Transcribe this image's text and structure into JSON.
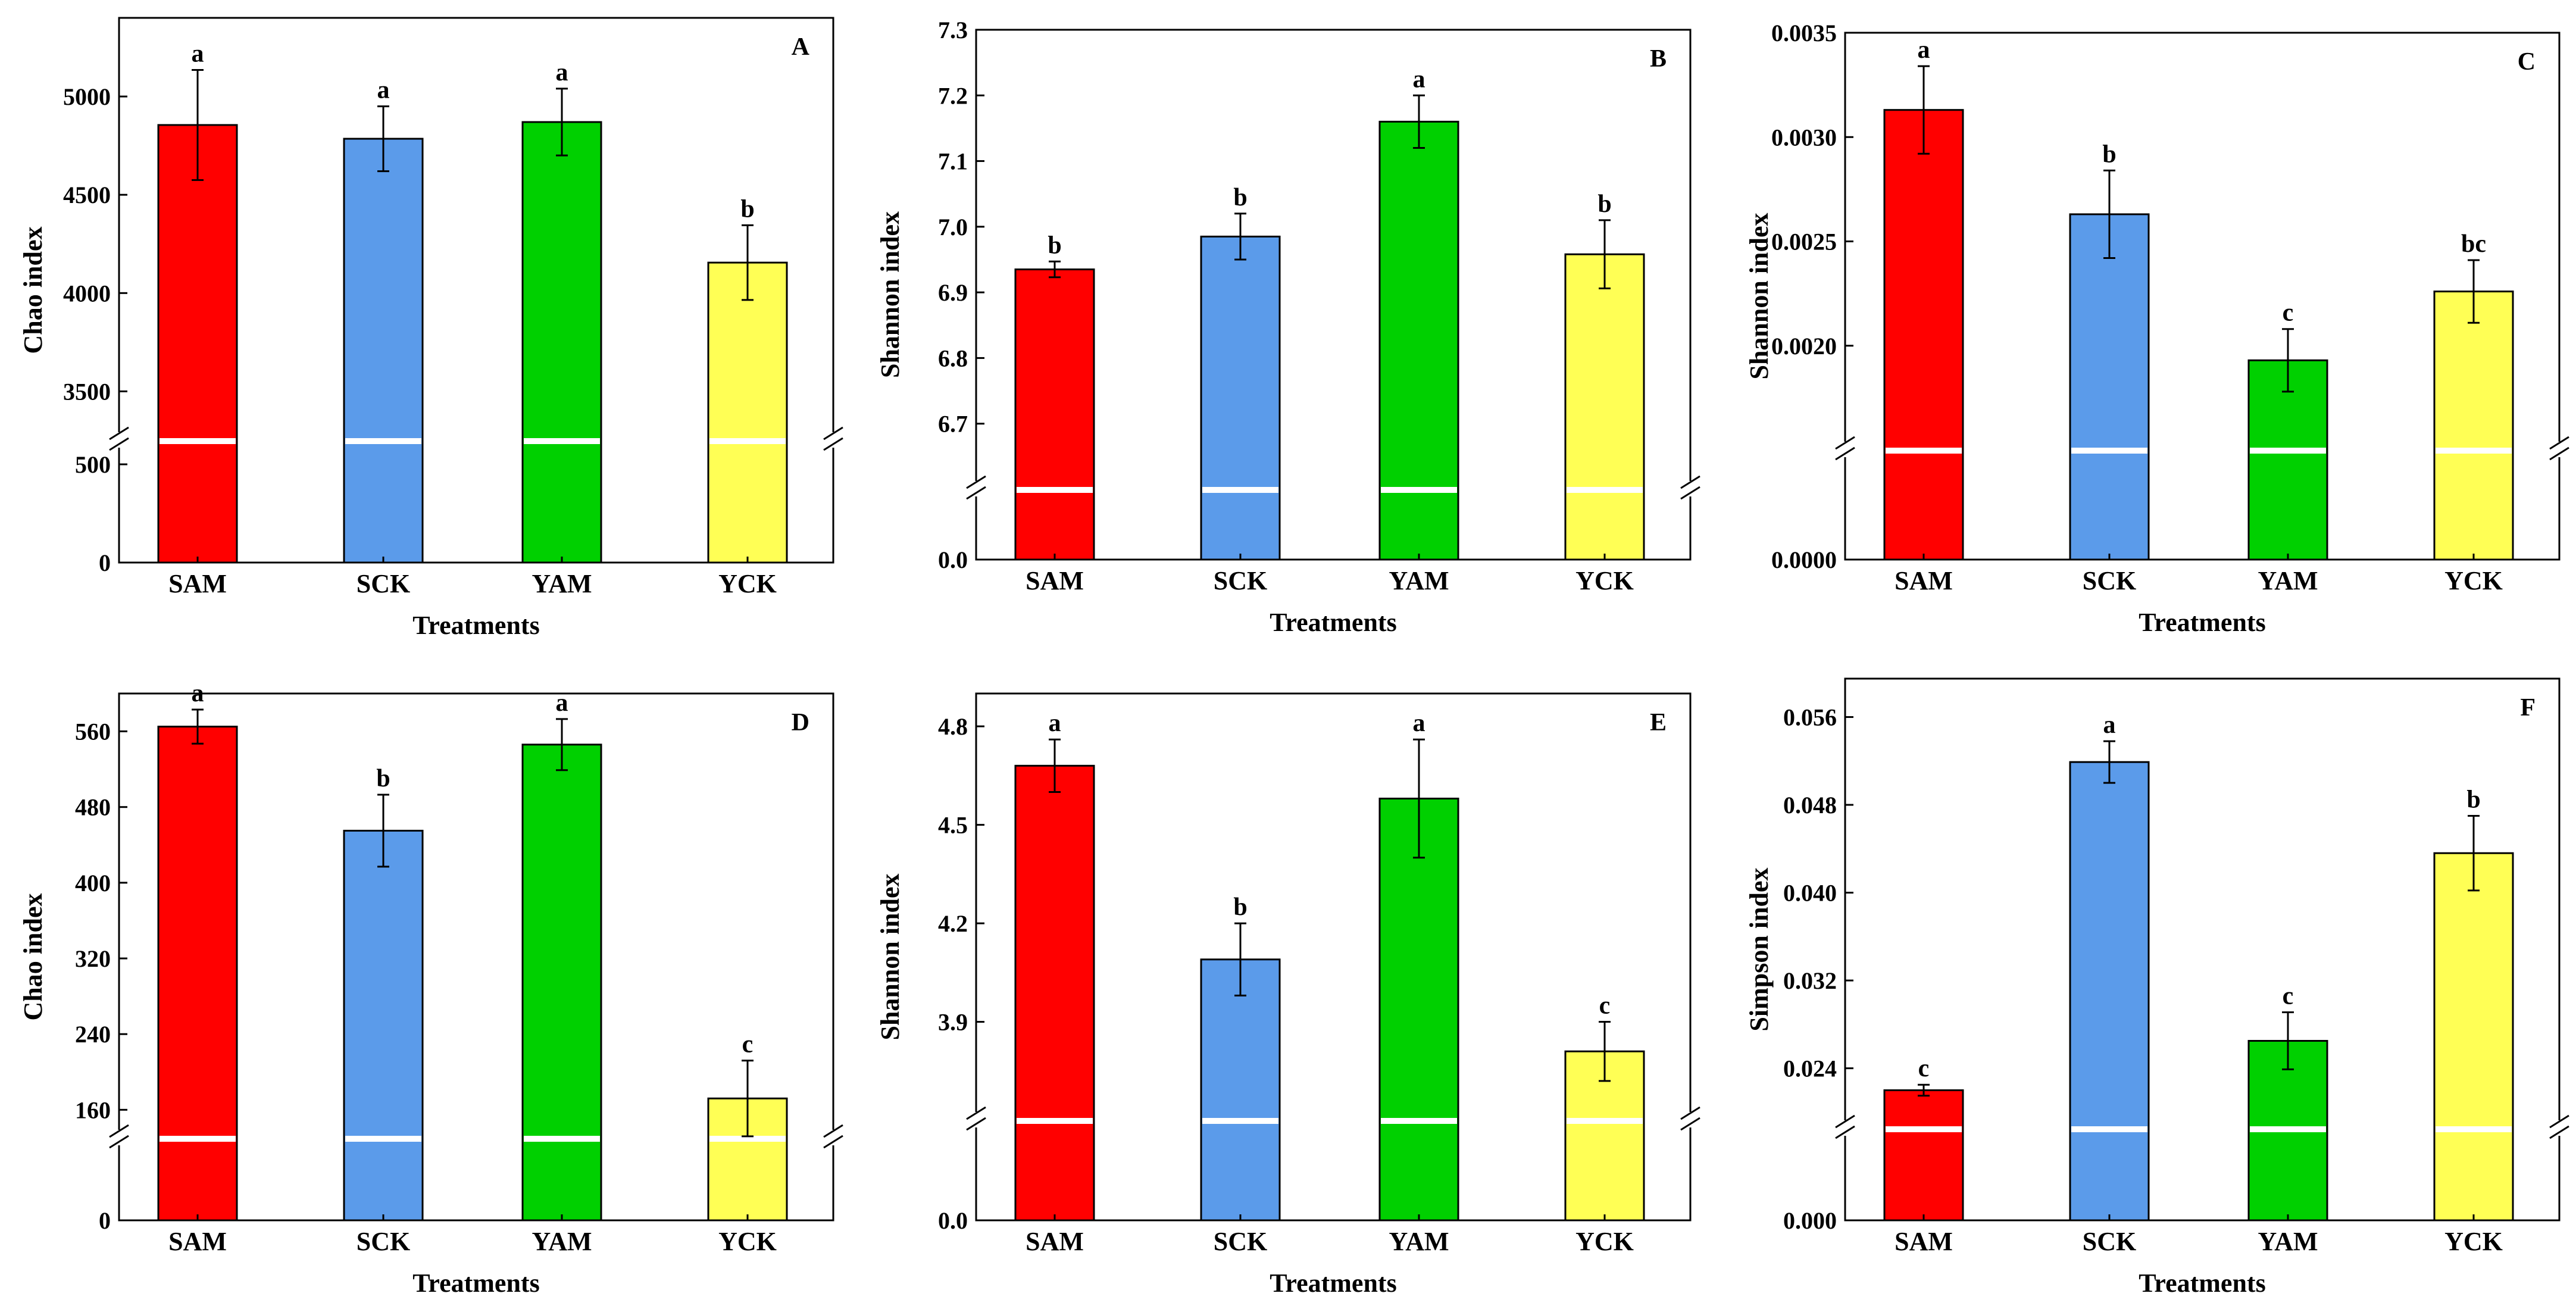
{
  "colors": {
    "SAM": "#ff0000",
    "SCK": "#5b9bea",
    "YAM": "#00d000",
    "YCK": "#ffff55"
  },
  "chart_data": [
    {
      "panel": "A",
      "type": "bar",
      "categories": [
        "SAM",
        "SCK",
        "YAM",
        "YCK"
      ],
      "values": [
        4855,
        4785,
        4870,
        4155
      ],
      "errors": [
        280,
        165,
        170,
        190
      ],
      "letters": [
        "a",
        "a",
        "a",
        "b"
      ],
      "xlabel": "Treatments",
      "ylabel": "Chao index",
      "lower_ticks": [
        0,
        500
      ],
      "lower_tick_labels": [
        "0",
        "500"
      ],
      "upper_ylim": [
        3250,
        5400
      ],
      "upper_ticks": [
        3500,
        4000,
        4500,
        5000
      ],
      "upper_tick_labels": [
        "3500",
        "4000",
        "4500",
        "5000"
      ]
    },
    {
      "panel": "B",
      "type": "bar",
      "categories": [
        "SAM",
        "SCK",
        "YAM",
        "YCK"
      ],
      "values": [
        6.935,
        6.985,
        7.16,
        6.958
      ],
      "errors": [
        0.012,
        0.035,
        0.04,
        0.052
      ],
      "letters": [
        "b",
        "b",
        "a",
        "b"
      ],
      "xlabel": "Treatments",
      "ylabel": "Shannon index",
      "lower_ticks": [
        0
      ],
      "lower_tick_labels": [
        "0.0"
      ],
      "upper_ylim": [
        6.6,
        7.3
      ],
      "upper_ticks": [
        6.7,
        6.8,
        6.9,
        7.0,
        7.1,
        7.2,
        7.3
      ],
      "upper_tick_labels": [
        "6.7",
        "6.8",
        "6.9",
        "7.0",
        "7.1",
        "7.2",
        "7.3"
      ]
    },
    {
      "panel": "C",
      "type": "bar",
      "categories": [
        "SAM",
        "SCK",
        "YAM",
        "YCK"
      ],
      "values": [
        0.00313,
        0.00263,
        0.00193,
        0.00226
      ],
      "errors": [
        0.00021,
        0.00021,
        0.00015,
        0.00015
      ],
      "letters": [
        "a",
        "b",
        "c",
        "bc"
      ],
      "xlabel": "Treatments",
      "ylabel": "Shannon index",
      "lower_ticks": [
        0
      ],
      "lower_tick_labels": [
        "0.0000"
      ],
      "upper_ylim": [
        0.0015,
        0.0035
      ],
      "upper_ticks": [
        0.002,
        0.0025,
        0.003,
        0.0035
      ],
      "upper_tick_labels": [
        "0.0020",
        "0.0025",
        "0.0030",
        "0.0035"
      ]
    },
    {
      "panel": "D",
      "type": "bar",
      "categories": [
        "SAM",
        "SCK",
        "YAM",
        "YCK"
      ],
      "values": [
        565,
        455,
        546,
        172
      ],
      "errors": [
        18,
        38,
        27,
        40
      ],
      "letters": [
        "a",
        "b",
        "a",
        "c"
      ],
      "xlabel": "Treatments",
      "ylabel": "Chao index",
      "lower_ticks": [
        0
      ],
      "lower_tick_labels": [
        "0"
      ],
      "upper_ylim": [
        130,
        600
      ],
      "upper_ticks": [
        160,
        240,
        320,
        400,
        480,
        560
      ],
      "upper_tick_labels": [
        "160",
        "240",
        "320",
        "400",
        "480",
        "560"
      ]
    },
    {
      "panel": "E",
      "type": "bar",
      "categories": [
        "SAM",
        "SCK",
        "YAM",
        "YCK"
      ],
      "values": [
        4.68,
        4.09,
        4.58,
        3.81
      ],
      "errors": [
        0.08,
        0.11,
        0.18,
        0.09
      ],
      "letters": [
        "a",
        "b",
        "a",
        "c"
      ],
      "xlabel": "Treatments",
      "ylabel": "Shannon index",
      "lower_ticks": [
        0
      ],
      "lower_tick_labels": [
        "0.0"
      ],
      "upper_ylim": [
        3.6,
        4.9
      ],
      "upper_ticks": [
        3.9,
        4.2,
        4.5,
        4.8
      ],
      "upper_tick_labels": [
        "3.9",
        "4.2",
        "4.5",
        "4.8"
      ]
    },
    {
      "panel": "F",
      "type": "bar",
      "categories": [
        "SAM",
        "SCK",
        "YAM",
        "YCK"
      ],
      "values": [
        0.022,
        0.0519,
        0.0265,
        0.0436
      ],
      "errors": [
        0.0005,
        0.0019,
        0.0026,
        0.0034
      ],
      "letters": [
        "c",
        "a",
        "c",
        "b"
      ],
      "xlabel": "Treatments",
      "ylabel": "Simpson index",
      "lower_ticks": [
        0
      ],
      "lower_tick_labels": [
        "0.000"
      ],
      "upper_ylim": [
        0.0185,
        0.0595
      ],
      "upper_ticks": [
        0.024,
        0.032,
        0.04,
        0.048,
        0.056
      ],
      "upper_tick_labels": [
        "0.024",
        "0.032",
        "0.040",
        "0.048",
        "0.056"
      ]
    }
  ]
}
